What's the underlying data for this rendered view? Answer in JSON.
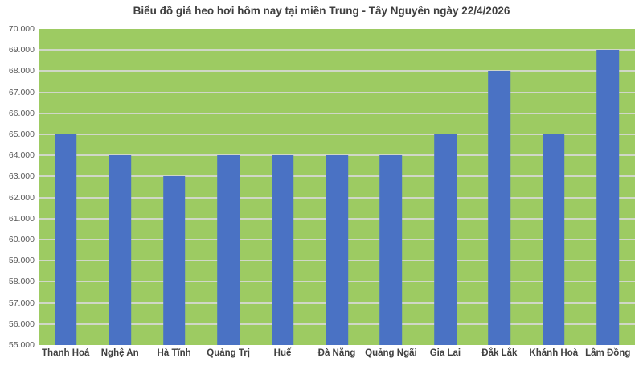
{
  "title": "Biểu đồ giá heo hơi hôm nay tại miền Trung - Tây Nguyên ngày 22/4/2026",
  "chart_data": {
    "type": "bar",
    "title": "Biểu đồ giá heo hơi hôm nay tại miền Trung - Tây Nguyên ngày 22/4/2026",
    "categories": [
      "Thanh Hoá",
      "Nghệ An",
      "Hà Tĩnh",
      "Quảng Trị",
      "Huế",
      "Đà Nẵng",
      "Quảng Ngãi",
      "Gia Lai",
      "Đắk Lắk",
      "Khánh Hoà",
      "Lâm Đồng"
    ],
    "values": [
      65000,
      64000,
      63000,
      64000,
      64000,
      64000,
      64000,
      65000,
      68000,
      65000,
      69000
    ],
    "xlabel": "",
    "ylabel": "",
    "ylim": [
      55000,
      70000
    ],
    "ytick_step": 1000,
    "ytick_labels": [
      "70.000",
      "69.000",
      "68.000",
      "67.000",
      "66.000",
      "65.000",
      "64.000",
      "63.000",
      "62.000",
      "61.000",
      "60.000",
      "59.000",
      "58.000",
      "57.000",
      "56.000",
      "55.000"
    ],
    "grid": "horizontal",
    "legend": "none",
    "colors": {
      "bar": "#4a72c4",
      "plot_bg": "#9dcb62",
      "gridline": "#d9d9d9",
      "title_text": "#3f3f3f",
      "ytick_text": "#595959",
      "xtick_text": "#404040"
    }
  }
}
